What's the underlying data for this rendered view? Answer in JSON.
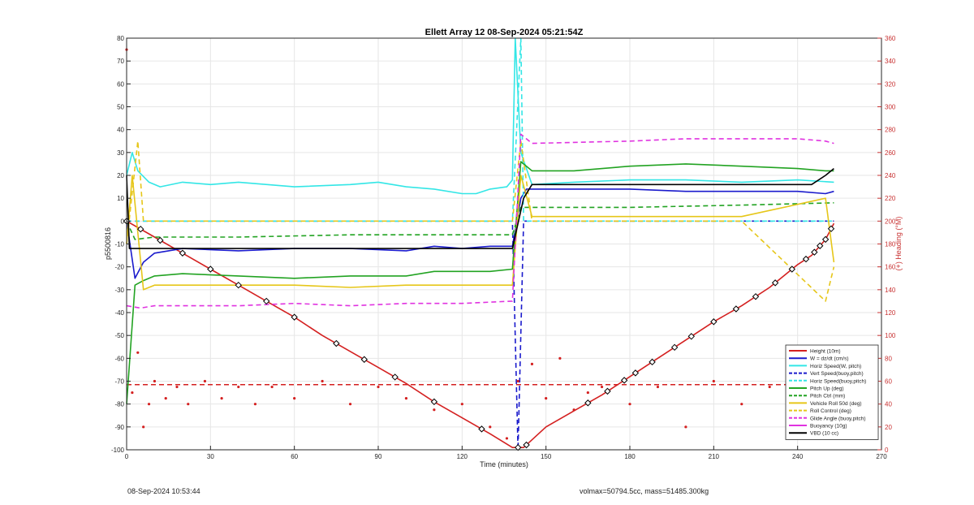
{
  "chart_data": {
    "type": "line",
    "title": "Ellett Array 12 08-Sep-2024 05:21:54Z",
    "xlabel": "Time (minutes)",
    "ylabel": "p5500816",
    "y2label": "(+) Heading (°M)",
    "xlim": [
      0,
      270
    ],
    "ylim": [
      -100,
      80
    ],
    "y2lim": [
      0,
      360
    ],
    "xticks": [
      0,
      30,
      60,
      90,
      120,
      150,
      180,
      210,
      240,
      270
    ],
    "yticks": [
      -100,
      -90,
      -80,
      -70,
      -60,
      -50,
      -40,
      -30,
      -20,
      -10,
      0,
      10,
      20,
      30,
      40,
      50,
      60,
      70,
      80
    ],
    "y2ticks": [
      0,
      20,
      40,
      60,
      80,
      100,
      120,
      140,
      160,
      180,
      200,
      220,
      240,
      260,
      280,
      300,
      320,
      340,
      360
    ],
    "grid": true,
    "legend_position": "bottom-right",
    "colors": {
      "red": "#d42020",
      "blue": "#1a1acc",
      "cyan": "#33e6e6",
      "green": "#22a322",
      "yellow": "#e6c619",
      "magenta": "#e033e0",
      "black": "#000000",
      "axis2": "#c83232"
    },
    "series": [
      {
        "name": "Height (10m)",
        "color": "#d42020",
        "style": "solid",
        "x": [
          0,
          10,
          20,
          30,
          40,
          50,
          60,
          70,
          80,
          90,
          100,
          110,
          120,
          130,
          138,
          142,
          150,
          160,
          170,
          180,
          190,
          200,
          210,
          220,
          230,
          240,
          245,
          250,
          253
        ],
        "y": [
          0,
          -7,
          -14,
          -21,
          -28,
          -35,
          -42,
          -50,
          -57,
          -64,
          -71,
          -79,
          -86,
          -93,
          -99,
          -99,
          -90,
          -83,
          -76,
          -68,
          -60,
          -52,
          -44,
          -37,
          -29,
          -19,
          -15,
          -8,
          -1
        ]
      },
      {
        "name": "W = dz/dt (cm/s)",
        "color": "#1a1acc",
        "style": "solid",
        "x": [
          0,
          3,
          6,
          10,
          20,
          40,
          60,
          80,
          100,
          110,
          120,
          130,
          138,
          141,
          143,
          160,
          180,
          200,
          220,
          240,
          250,
          253
        ],
        "y": [
          0,
          -25,
          -18,
          -14,
          -12,
          -13,
          -12,
          -12,
          -13,
          -11,
          -12,
          -11,
          -11,
          10,
          14,
          14,
          14,
          13,
          13,
          13,
          12,
          13
        ]
      },
      {
        "name": "Horiz Speed(W, pitch)",
        "color": "#33e6e6",
        "style": "solid",
        "x": [
          0,
          2,
          4,
          8,
          12,
          20,
          30,
          40,
          60,
          80,
          90,
          100,
          110,
          120,
          125,
          130,
          136,
          138,
          139,
          141,
          145,
          160,
          180,
          200,
          220,
          240,
          253
        ],
        "y": [
          20,
          30,
          22,
          17,
          15,
          17,
          16,
          17,
          15,
          16,
          17,
          15,
          14,
          12,
          12,
          14,
          15,
          18,
          80,
          30,
          16,
          17,
          18,
          18,
          17,
          18,
          17
        ]
      },
      {
        "name": "Vert Speed(buoy,pitch)",
        "color": "#1a1acc",
        "style": "dashed",
        "x": [
          0,
          10,
          60,
          120,
          138,
          140,
          142,
          150,
          200,
          253
        ],
        "y": [
          0,
          0,
          0,
          0,
          0,
          -100,
          0,
          0,
          0,
          0
        ]
      },
      {
        "name": "Horiz Speed(buoy,pitch)",
        "color": "#33e6e6",
        "style": "dashed",
        "x": [
          0,
          60,
          138,
          141,
          142,
          150,
          200,
          253
        ],
        "y": [
          0,
          0,
          0,
          80,
          0,
          0,
          0,
          0
        ]
      },
      {
        "name": "Pitch Up (deg)",
        "color": "#22a322",
        "style": "solid",
        "x": [
          0,
          3,
          6,
          10,
          20,
          40,
          60,
          80,
          100,
          110,
          120,
          130,
          138,
          141,
          145,
          160,
          180,
          200,
          220,
          240,
          250,
          253
        ],
        "y": [
          -80,
          -28,
          -26,
          -24,
          -23,
          -24,
          -25,
          -24,
          -24,
          -22,
          -22,
          -22,
          -21,
          26,
          22,
          22,
          24,
          25,
          24,
          23,
          22,
          22
        ]
      },
      {
        "name": "Pitch Ctrl (mm)",
        "color": "#22a322",
        "style": "dashed",
        "x": [
          0,
          3,
          10,
          40,
          80,
          138,
          141,
          145,
          180,
          220,
          253
        ],
        "y": [
          0,
          -8,
          -7,
          -7,
          -6,
          -6,
          6,
          6,
          6,
          7,
          8
        ]
      },
      {
        "name": "Vehicle Roll 50d (deg)",
        "color": "#e6c619",
        "style": "solid",
        "x": [
          0,
          2,
          4,
          6,
          10,
          20,
          40,
          60,
          80,
          100,
          120,
          138,
          141,
          145,
          180,
          220,
          250,
          253
        ],
        "y": [
          -10,
          20,
          -5,
          -30,
          -28,
          -28,
          -28,
          -28,
          -29,
          -28,
          -28,
          -28,
          20,
          2,
          2,
          2,
          10,
          -18
        ]
      },
      {
        "name": "Roll Control (deg)",
        "color": "#e6c619",
        "style": "dashed",
        "x": [
          0,
          4,
          6,
          10,
          20,
          60,
          100,
          138,
          141,
          145,
          180,
          220,
          250,
          253
        ],
        "y": [
          -10,
          35,
          0,
          0,
          0,
          0,
          0,
          0,
          35,
          0,
          0,
          0,
          -35,
          -20
        ]
      },
      {
        "name": "Glide Angle (buoy,pitch)",
        "color": "#e033e0",
        "style": "dashed",
        "x": [
          0,
          5,
          10,
          20,
          40,
          60,
          80,
          100,
          120,
          138,
          141,
          145,
          180,
          200,
          220,
          240,
          250,
          253
        ],
        "y": [
          -37,
          -38,
          -37,
          -37,
          -37,
          -36,
          -37,
          -36,
          -36,
          -35,
          38,
          34,
          35,
          36,
          36,
          36,
          35,
          34
        ]
      },
      {
        "name": "Buoyancy (10g)",
        "color": "#e033e0",
        "style": "solid",
        "x": [
          0,
          253
        ],
        "y": [
          null,
          null
        ]
      },
      {
        "name": "VBD (10 cc)",
        "color": "#000000",
        "style": "solid",
        "x": [
          0,
          1,
          5,
          60,
          120,
          138,
          142,
          145,
          180,
          220,
          245,
          250,
          253
        ],
        "y": [
          20,
          -12,
          -12,
          -12,
          -12,
          -12,
          10,
          16,
          16,
          16,
          16,
          20,
          23
        ]
      }
    ],
    "heading_series": {
      "name": "(+) Heading",
      "color": "#d42020",
      "style": "dotted",
      "axis": "right",
      "x": [
        0,
        2,
        4,
        6,
        8,
        10,
        14,
        18,
        22,
        28,
        34,
        40,
        46,
        52,
        60,
        70,
        80,
        90,
        100,
        110,
        120,
        130,
        136,
        140,
        145,
        150,
        155,
        160,
        165,
        170,
        180,
        190,
        200,
        210,
        220,
        230,
        240,
        245,
        250,
        253
      ],
      "y": [
        350,
        50,
        85,
        20,
        40,
        60,
        45,
        55,
        40,
        60,
        45,
        55,
        40,
        55,
        45,
        60,
        40,
        55,
        45,
        35,
        40,
        20,
        10,
        60,
        75,
        45,
        80,
        35,
        50,
        55,
        40,
        55,
        20,
        60,
        40,
        55,
        35,
        30,
        50,
        25
      ]
    },
    "heading_reference": {
      "value": 57,
      "color": "#d42020",
      "style": "dashed",
      "axis": "right"
    },
    "height_markers": [
      0,
      5,
      12,
      20,
      30,
      40,
      50,
      60,
      75,
      85,
      96,
      110,
      127,
      140,
      143,
      165,
      172,
      178,
      182,
      188,
      196,
      202,
      210,
      218,
      225,
      232,
      238,
      243,
      246,
      248,
      250,
      252
    ]
  },
  "legend": {
    "items": [
      {
        "label": "Height (10m)",
        "color": "#d42020",
        "style": "solid"
      },
      {
        "label": "W = dz/dt (cm/s)",
        "color": "#1a1acc",
        "style": "solid"
      },
      {
        "label": "Horiz Speed(W, pitch)",
        "color": "#33e6e6",
        "style": "solid"
      },
      {
        "label": "Vert Speed(buoy,pitch)",
        "color": "#1a1acc",
        "style": "dashed"
      },
      {
        "label": "Horiz Speed(buoy,pitch)",
        "color": "#33e6e6",
        "style": "dashed"
      },
      {
        "label": "Pitch Up (deg)",
        "color": "#22a322",
        "style": "solid"
      },
      {
        "label": "Pitch Ctrl (mm)",
        "color": "#22a322",
        "style": "dashed"
      },
      {
        "label": "Vehicle Roll 50d (deg)",
        "color": "#e6c619",
        "style": "solid"
      },
      {
        "label": "Roll Control (deg)",
        "color": "#e6c619",
        "style": "dashed"
      },
      {
        "label": "Glide Angle (buoy,pitch)",
        "color": "#e033e0",
        "style": "dashed"
      },
      {
        "label": "Buoyancy (10g)",
        "color": "#e033e0",
        "style": "solid"
      },
      {
        "label": "VBD (10 cc)",
        "color": "#000000",
        "style": "solid"
      }
    ]
  },
  "footer": {
    "timestamp": "08-Sep-2024 10:53:44",
    "summary": "volmax=50794.5cc, mass=51485.300kg"
  }
}
